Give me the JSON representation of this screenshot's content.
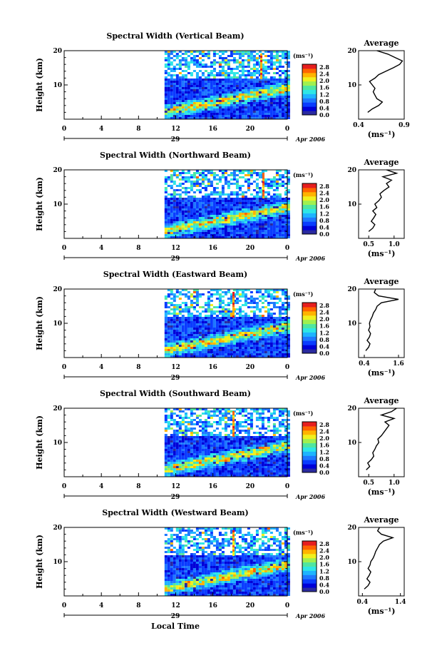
{
  "chart_data": [
    {
      "type": "heatmap",
      "title": "Spectral Width (Vertical Beam)",
      "ylabel": "Height (km)",
      "xlim": [
        0,
        24
      ],
      "ylim": [
        0,
        20
      ],
      "x_ticks": [
        "0",
        "4",
        "8",
        "12",
        "16",
        "20",
        "0"
      ],
      "y_ticks": [
        "10",
        "20"
      ],
      "day_label": "29",
      "date_label": "Apr 2006",
      "data_start_hour": 10.8,
      "colorbar": {
        "unit": "(ms⁻¹)",
        "ticks": [
          "2.8",
          "2.4",
          "2.0",
          "1.6",
          "1.2",
          "0.8",
          "0.4",
          "0.0"
        ]
      },
      "profile": {
        "title": "Average",
        "xlabel": "(ms⁻¹)",
        "x_ticks": [
          "0.4",
          "0.9"
        ],
        "xlim": [
          0.4,
          0.9
        ],
        "ylim": [
          0,
          20
        ],
        "heights": [
          2,
          3,
          4,
          5,
          6,
          7,
          8,
          9,
          10,
          11,
          12,
          13,
          14,
          15,
          16,
          17,
          18,
          19,
          20
        ],
        "values": [
          0.5,
          0.55,
          0.62,
          0.66,
          0.6,
          0.58,
          0.56,
          0.58,
          0.55,
          0.52,
          0.58,
          0.62,
          0.7,
          0.78,
          0.85,
          0.88,
          0.8,
          0.72,
          0.6
        ]
      }
    },
    {
      "type": "heatmap",
      "title": "Spectral Width (Northward Beam)",
      "ylabel": "Height (km)",
      "xlim": [
        0,
        24
      ],
      "ylim": [
        0,
        20
      ],
      "x_ticks": [
        "0",
        "4",
        "8",
        "12",
        "16",
        "20",
        "0"
      ],
      "y_ticks": [
        "10",
        "20"
      ],
      "day_label": "29",
      "date_label": "Apr 2006",
      "data_start_hour": 10.8,
      "colorbar": {
        "unit": "(ms⁻¹)",
        "ticks": [
          "2.8",
          "2.4",
          "2.0",
          "1.6",
          "1.2",
          "0.8",
          "0.4",
          "0.0"
        ]
      },
      "profile": {
        "title": "Average",
        "xlabel": "(ms⁻¹)",
        "x_ticks": [
          "0.5",
          "1.0"
        ],
        "xlim": [
          0.3,
          1.2
        ],
        "ylim": [
          0,
          20
        ],
        "heights": [
          2,
          3,
          4,
          5,
          6,
          7,
          8,
          9,
          10,
          11,
          12,
          13,
          14,
          15,
          16,
          17,
          18,
          19,
          20
        ],
        "values": [
          0.5,
          0.58,
          0.62,
          0.55,
          0.6,
          0.64,
          0.58,
          0.66,
          0.62,
          0.7,
          0.75,
          0.72,
          0.8,
          0.9,
          0.85,
          0.95,
          0.78,
          1.05,
          0.85
        ]
      }
    },
    {
      "type": "heatmap",
      "title": "Spectral Width (Eastward Beam)",
      "ylabel": "Height (km)",
      "xlim": [
        0,
        24
      ],
      "ylim": [
        0,
        20
      ],
      "x_ticks": [
        "0",
        "4",
        "8",
        "12",
        "16",
        "20",
        "0"
      ],
      "y_ticks": [
        "10",
        "20"
      ],
      "day_label": "29",
      "date_label": "Apr 2006",
      "data_start_hour": 10.8,
      "colorbar": {
        "unit": "(ms⁻¹)",
        "ticks": [
          "2.8",
          "2.4",
          "2.0",
          "1.6",
          "1.2",
          "0.8",
          "0.4",
          "0.0"
        ]
      },
      "profile": {
        "title": "Average",
        "xlabel": "(ms⁻¹)",
        "x_ticks": [
          "0.4",
          "1.6"
        ],
        "xlim": [
          0.2,
          1.8
        ],
        "ylim": [
          0,
          20
        ],
        "heights": [
          2,
          3,
          4,
          5,
          6,
          7,
          8,
          9,
          10,
          11,
          12,
          13,
          14,
          15,
          16,
          17,
          18,
          19,
          20
        ],
        "values": [
          0.45,
          0.55,
          0.6,
          0.5,
          0.58,
          0.62,
          0.55,
          0.6,
          0.58,
          0.62,
          0.68,
          0.72,
          0.8,
          0.85,
          1.0,
          1.6,
          0.9,
          0.75,
          0.8
        ]
      }
    },
    {
      "type": "heatmap",
      "title": "Spectral Width (Southward Beam)",
      "ylabel": "Height (km)",
      "xlim": [
        0,
        24
      ],
      "ylim": [
        0,
        20
      ],
      "x_ticks": [
        "0",
        "4",
        "8",
        "12",
        "16",
        "20",
        "0"
      ],
      "y_ticks": [
        "10",
        "20"
      ],
      "day_label": "29",
      "date_label": "Apr 2006",
      "data_start_hour": 10.8,
      "colorbar": {
        "unit": "(ms⁻¹)",
        "ticks": [
          "2.8",
          "2.4",
          "2.0",
          "1.6",
          "1.2",
          "0.8",
          "0.4",
          "0.0"
        ]
      },
      "profile": {
        "title": "Average",
        "xlabel": "(ms⁻¹)",
        "x_ticks": [
          "0.5",
          "1.0"
        ],
        "xlim": [
          0.3,
          1.2
        ],
        "ylim": [
          0,
          20
        ],
        "heights": [
          2,
          3,
          4,
          5,
          6,
          7,
          8,
          9,
          10,
          11,
          12,
          13,
          14,
          15,
          16,
          17,
          18,
          19,
          20
        ],
        "values": [
          0.45,
          0.52,
          0.48,
          0.55,
          0.6,
          0.58,
          0.62,
          0.65,
          0.7,
          0.68,
          0.75,
          0.8,
          0.85,
          0.9,
          0.82,
          1.0,
          0.75,
          0.95,
          1.05
        ]
      }
    },
    {
      "type": "heatmap",
      "title": "Spectral Width (Westward Beam)",
      "ylabel": "Height (km)",
      "xlabel": "Local Time",
      "xlim": [
        0,
        24
      ],
      "ylim": [
        0,
        20
      ],
      "x_ticks": [
        "0",
        "4",
        "8",
        "12",
        "16",
        "20",
        "0"
      ],
      "y_ticks": [
        "10",
        "20"
      ],
      "day_label": "29",
      "date_label": "Apr 2006",
      "data_start_hour": 10.8,
      "colorbar": {
        "unit": "(ms⁻¹)",
        "ticks": [
          "2.8",
          "2.4",
          "2.0",
          "1.6",
          "1.2",
          "0.8",
          "0.4",
          "0.0"
        ]
      },
      "profile": {
        "title": "Average",
        "xlabel": "(ms⁻¹)",
        "x_ticks": [
          "0.4",
          "1.4"
        ],
        "xlim": [
          0.3,
          1.5
        ],
        "ylim": [
          0,
          20
        ],
        "heights": [
          2,
          3,
          4,
          5,
          6,
          7,
          8,
          9,
          10,
          11,
          12,
          13,
          14,
          15,
          16,
          17,
          18,
          19,
          20
        ],
        "values": [
          0.45,
          0.55,
          0.6,
          0.52,
          0.58,
          0.62,
          0.55,
          0.6,
          0.62,
          0.68,
          0.72,
          0.75,
          0.8,
          0.85,
          0.95,
          1.2,
          0.9,
          0.8,
          0.85
        ]
      }
    }
  ]
}
